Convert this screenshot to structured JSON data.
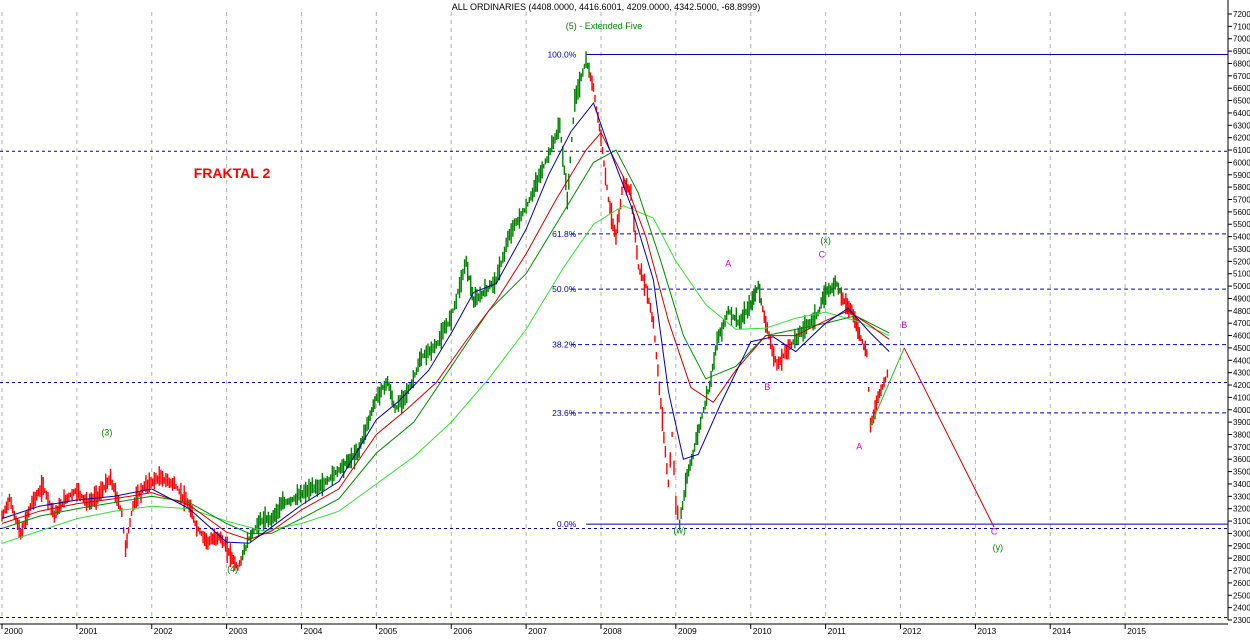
{
  "chart_data": {
    "type": "line",
    "title": "ALL ORDINARIES (4408.0000, 4416.6001, 4209.0000, 4342.5000, -68.8999)",
    "subtitle": "(5) - Extended Five",
    "annotation_main": "FRAKTAL 2",
    "ylim": [
      2300,
      7200
    ],
    "yticks": [
      2300,
      2400,
      2500,
      2600,
      2700,
      2800,
      2900,
      3000,
      3100,
      3200,
      3300,
      3400,
      3500,
      3600,
      3700,
      3800,
      3900,
      4000,
      4100,
      4200,
      4300,
      4400,
      4500,
      4600,
      4700,
      4800,
      4900,
      5000,
      5100,
      5200,
      5300,
      5400,
      5500,
      5600,
      5700,
      5800,
      5900,
      6000,
      6100,
      6200,
      6300,
      6400,
      6500,
      6600,
      6700,
      6800,
      6900,
      7000,
      7100,
      7200
    ],
    "xlim": [
      2000.0,
      2016.0
    ],
    "xticks": [
      {
        "label": "2000",
        "x": 2000.0
      },
      {
        "label": "2001",
        "x": 2001.0
      },
      {
        "label": "2002",
        "x": 2002.0
      },
      {
        "label": "2003",
        "x": 2003.0
      },
      {
        "label": "2004",
        "x": 2004.0
      },
      {
        "label": "2005",
        "x": 2005.0
      },
      {
        "label": "2006",
        "x": 2006.0
      },
      {
        "label": "2007",
        "x": 2007.0
      },
      {
        "label": "2008",
        "x": 2008.0
      },
      {
        "label": "2009",
        "x": 2009.0
      },
      {
        "label": "2010",
        "x": 2010.0
      },
      {
        "label": "2011",
        "x": 2011.0
      },
      {
        "label": "2012",
        "x": 2012.0
      },
      {
        "label": "2013",
        "x": 2013.0
      },
      {
        "label": "2014",
        "x": 2014.0
      },
      {
        "label": "2015",
        "x": 2015.0
      }
    ],
    "fib_levels": [
      {
        "label": "100.0%",
        "y": 6873
      },
      {
        "label": "61.8%",
        "y": 5422
      },
      {
        "label": "50.0%",
        "y": 4975
      },
      {
        "label": "38.2%",
        "y": 4527
      },
      {
        "label": "23.6%",
        "y": 3975
      },
      {
        "label": "0.0%",
        "y": 3075
      }
    ],
    "hlines_extra": [
      6090,
      4220,
      3040,
      2320
    ],
    "price": [
      [
        2000.0,
        3130
      ],
      [
        2000.1,
        3280
      ],
      [
        2000.25,
        2990
      ],
      [
        2000.4,
        3250
      ],
      [
        2000.55,
        3380
      ],
      [
        2000.7,
        3150
      ],
      [
        2000.85,
        3280
      ],
      [
        2001.0,
        3350
      ],
      [
        2001.15,
        3240
      ],
      [
        2001.3,
        3320
      ],
      [
        2001.45,
        3440
      ],
      [
        2001.6,
        3170
      ],
      [
        2001.65,
        2880
      ],
      [
        2001.75,
        3230
      ],
      [
        2001.9,
        3380
      ],
      [
        2002.1,
        3450
      ],
      [
        2002.3,
        3400
      ],
      [
        2002.5,
        3220
      ],
      [
        2002.6,
        3050
      ],
      [
        2002.75,
        2930
      ],
      [
        2002.9,
        2980
      ],
      [
        2003.05,
        2830
      ],
      [
        2003.15,
        2720
      ],
      [
        2003.3,
        2960
      ],
      [
        2003.45,
        3100
      ],
      [
        2003.6,
        3120
      ],
      [
        2003.75,
        3240
      ],
      [
        2003.9,
        3280
      ],
      [
        2004.1,
        3350
      ],
      [
        2004.3,
        3400
      ],
      [
        2004.5,
        3520
      ],
      [
        2004.75,
        3650
      ],
      [
        2005.0,
        4100
      ],
      [
        2005.15,
        4230
      ],
      [
        2005.25,
        4000
      ],
      [
        2005.45,
        4180
      ],
      [
        2005.6,
        4420
      ],
      [
        2005.8,
        4520
      ],
      [
        2006.0,
        4750
      ],
      [
        2006.2,
        5200
      ],
      [
        2006.3,
        4870
      ],
      [
        2006.45,
        4960
      ],
      [
        2006.6,
        5050
      ],
      [
        2006.8,
        5450
      ],
      [
        2007.0,
        5630
      ],
      [
        2007.15,
        5850
      ],
      [
        2007.3,
        6060
      ],
      [
        2007.45,
        6300
      ],
      [
        2007.55,
        5700
      ],
      [
        2007.65,
        6500
      ],
      [
        2007.8,
        6820
      ],
      [
        2007.9,
        6600
      ],
      [
        2008.0,
        6200
      ],
      [
        2008.1,
        5700
      ],
      [
        2008.2,
        5380
      ],
      [
        2008.3,
        5850
      ],
      [
        2008.4,
        5750
      ],
      [
        2008.5,
        5150
      ],
      [
        2008.6,
        5000
      ],
      [
        2008.7,
        4700
      ],
      [
        2008.8,
        4050
      ],
      [
        2008.9,
        3400
      ],
      [
        2008.95,
        3800
      ],
      [
        2009.0,
        3250
      ],
      [
        2009.05,
        3080
      ],
      [
        2009.15,
        3450
      ],
      [
        2009.25,
        3700
      ],
      [
        2009.35,
        3950
      ],
      [
        2009.45,
        4200
      ],
      [
        2009.55,
        4550
      ],
      [
        2009.7,
        4800
      ],
      [
        2009.85,
        4700
      ],
      [
        2010.0,
        4850
      ],
      [
        2010.1,
        5000
      ],
      [
        2010.2,
        4700
      ],
      [
        2010.35,
        4350
      ],
      [
        2010.5,
        4500
      ],
      [
        2010.7,
        4650
      ],
      [
        2010.9,
        4780
      ],
      [
        2011.0,
        4950
      ],
      [
        2011.15,
        5020
      ],
      [
        2011.25,
        4880
      ],
      [
        2011.35,
        4800
      ],
      [
        2011.45,
        4620
      ],
      [
        2011.55,
        4450
      ],
      [
        2011.6,
        3870
      ],
      [
        2011.7,
        4100
      ],
      [
        2011.8,
        4250
      ],
      [
        2011.85,
        4342
      ]
    ],
    "up_ranges": [
      [
        2003.2,
        2007.85
      ],
      [
        2009.05,
        2010.15
      ],
      [
        2010.55,
        2011.2
      ]
    ],
    "sma_blue": [
      [
        2000.0,
        3120
      ],
      [
        2000.5,
        3220
      ],
      [
        2001.0,
        3270
      ],
      [
        2001.5,
        3300
      ],
      [
        2002.0,
        3360
      ],
      [
        2002.5,
        3200
      ],
      [
        2003.0,
        2930
      ],
      [
        2003.3,
        2920
      ],
      [
        2003.6,
        3050
      ],
      [
        2004.0,
        3230
      ],
      [
        2004.5,
        3420
      ],
      [
        2005.0,
        3920
      ],
      [
        2005.3,
        4070
      ],
      [
        2005.7,
        4320
      ],
      [
        2006.0,
        4620
      ],
      [
        2006.3,
        4950
      ],
      [
        2006.6,
        5020
      ],
      [
        2007.0,
        5460
      ],
      [
        2007.3,
        5900
      ],
      [
        2007.6,
        6250
      ],
      [
        2007.9,
        6480
      ],
      [
        2008.1,
        6130
      ],
      [
        2008.4,
        5650
      ],
      [
        2008.7,
        5050
      ],
      [
        2008.9,
        4150
      ],
      [
        2009.1,
        3600
      ],
      [
        2009.3,
        3640
      ],
      [
        2009.6,
        4050
      ],
      [
        2010.0,
        4550
      ],
      [
        2010.3,
        4590
      ],
      [
        2010.6,
        4470
      ],
      [
        2011.0,
        4700
      ],
      [
        2011.3,
        4820
      ],
      [
        2011.6,
        4620
      ],
      [
        2011.85,
        4470
      ]
    ],
    "sma_red": [
      [
        2000.0,
        3080
      ],
      [
        2000.5,
        3180
      ],
      [
        2001.0,
        3240
      ],
      [
        2001.5,
        3280
      ],
      [
        2002.0,
        3330
      ],
      [
        2002.5,
        3230
      ],
      [
        2003.0,
        3010
      ],
      [
        2003.3,
        2950
      ],
      [
        2003.6,
        3020
      ],
      [
        2004.0,
        3190
      ],
      [
        2004.5,
        3360
      ],
      [
        2005.0,
        3800
      ],
      [
        2005.4,
        4000
      ],
      [
        2005.8,
        4220
      ],
      [
        2006.2,
        4560
      ],
      [
        2006.6,
        4880
      ],
      [
        2007.0,
        5260
      ],
      [
        2007.4,
        5700
      ],
      [
        2007.8,
        6100
      ],
      [
        2008.0,
        6240
      ],
      [
        2008.3,
        5880
      ],
      [
        2008.6,
        5400
      ],
      [
        2008.9,
        4720
      ],
      [
        2009.2,
        4180
      ],
      [
        2009.5,
        4060
      ],
      [
        2009.8,
        4320
      ],
      [
        2010.2,
        4600
      ],
      [
        2010.6,
        4600
      ],
      [
        2011.0,
        4720
      ],
      [
        2011.3,
        4800
      ],
      [
        2011.6,
        4680
      ],
      [
        2011.85,
        4570
      ]
    ],
    "sma_dkgreen": [
      [
        2000.0,
        3040
      ],
      [
        2000.5,
        3140
      ],
      [
        2001.0,
        3200
      ],
      [
        2001.5,
        3250
      ],
      [
        2002.0,
        3300
      ],
      [
        2002.5,
        3250
      ],
      [
        2003.0,
        3080
      ],
      [
        2003.3,
        3000
      ],
      [
        2003.6,
        3000
      ],
      [
        2004.0,
        3120
      ],
      [
        2004.5,
        3280
      ],
      [
        2005.0,
        3650
      ],
      [
        2005.5,
        3900
      ],
      [
        2006.0,
        4350
      ],
      [
        2006.5,
        4800
      ],
      [
        2007.0,
        5100
      ],
      [
        2007.5,
        5600
      ],
      [
        2007.9,
        6000
      ],
      [
        2008.2,
        6100
      ],
      [
        2008.5,
        5750
      ],
      [
        2008.8,
        5200
      ],
      [
        2009.1,
        4600
      ],
      [
        2009.4,
        4250
      ],
      [
        2009.8,
        4350
      ],
      [
        2010.2,
        4600
      ],
      [
        2010.6,
        4650
      ],
      [
        2011.0,
        4700
      ],
      [
        2011.4,
        4760
      ],
      [
        2011.85,
        4620
      ]
    ],
    "sma_ltgreen": [
      [
        2000.0,
        2920
      ],
      [
        2000.5,
        3020
      ],
      [
        2001.0,
        3120
      ],
      [
        2001.5,
        3180
      ],
      [
        2002.0,
        3220
      ],
      [
        2002.5,
        3200
      ],
      [
        2003.0,
        3100
      ],
      [
        2003.5,
        3020
      ],
      [
        2004.0,
        3080
      ],
      [
        2004.5,
        3180
      ],
      [
        2005.0,
        3400
      ],
      [
        2005.5,
        3620
      ],
      [
        2006.0,
        3900
      ],
      [
        2006.5,
        4250
      ],
      [
        2007.0,
        4650
      ],
      [
        2007.5,
        5150
      ],
      [
        2007.9,
        5500
      ],
      [
        2008.3,
        5650
      ],
      [
        2008.7,
        5550
      ],
      [
        2009.0,
        5200
      ],
      [
        2009.4,
        4850
      ],
      [
        2009.8,
        4650
      ],
      [
        2010.2,
        4660
      ],
      [
        2010.6,
        4740
      ],
      [
        2011.0,
        4790
      ],
      [
        2011.4,
        4720
      ],
      [
        2011.85,
        4600
      ]
    ],
    "projection_green": [
      [
        2011.6,
        3870
      ],
      [
        2012.05,
        4500
      ]
    ],
    "projection_red": [
      [
        2012.05,
        4500
      ],
      [
        2013.25,
        3050
      ]
    ],
    "wave_labels": [
      {
        "text": "(3)",
        "x": 2001.4,
        "y": 3790,
        "color": "#008000"
      },
      {
        "text": "(4)",
        "x": 2003.08,
        "y": 2690,
        "color": "#008000"
      },
      {
        "text": "(w)",
        "x": 2009.05,
        "y": 3000,
        "color": "#008000"
      },
      {
        "text": "(x)",
        "x": 2011.0,
        "y": 5345,
        "color": "#008000"
      },
      {
        "text": "(y)",
        "x": 2013.3,
        "y": 2860,
        "color": "#008000"
      },
      {
        "text": "A",
        "x": 2009.7,
        "y": 5160,
        "color": "#cc00cc"
      },
      {
        "text": "B",
        "x": 2010.22,
        "y": 4160,
        "color": "#cc00cc"
      },
      {
        "text": "C",
        "x": 2010.95,
        "y": 5230,
        "color": "#cc00cc"
      },
      {
        "text": "A",
        "x": 2011.45,
        "y": 3680,
        "color": "#cc00cc"
      },
      {
        "text": "B",
        "x": 2012.05,
        "y": 4660,
        "color": "#cc00cc"
      },
      {
        "text": "C",
        "x": 2013.25,
        "y": 2990,
        "color": "#cc00cc"
      }
    ],
    "colors": {
      "up": "#008000",
      "down": "#ff0000",
      "sma_blue": "#0000aa",
      "sma_red": "#cc0000",
      "sma_dkgreen": "#008800",
      "sma_ltgreen": "#33dd33",
      "fib": "#0000aa",
      "grid": "#b0b0b0",
      "title": "#000000",
      "fraktal": "#ff0000"
    }
  }
}
